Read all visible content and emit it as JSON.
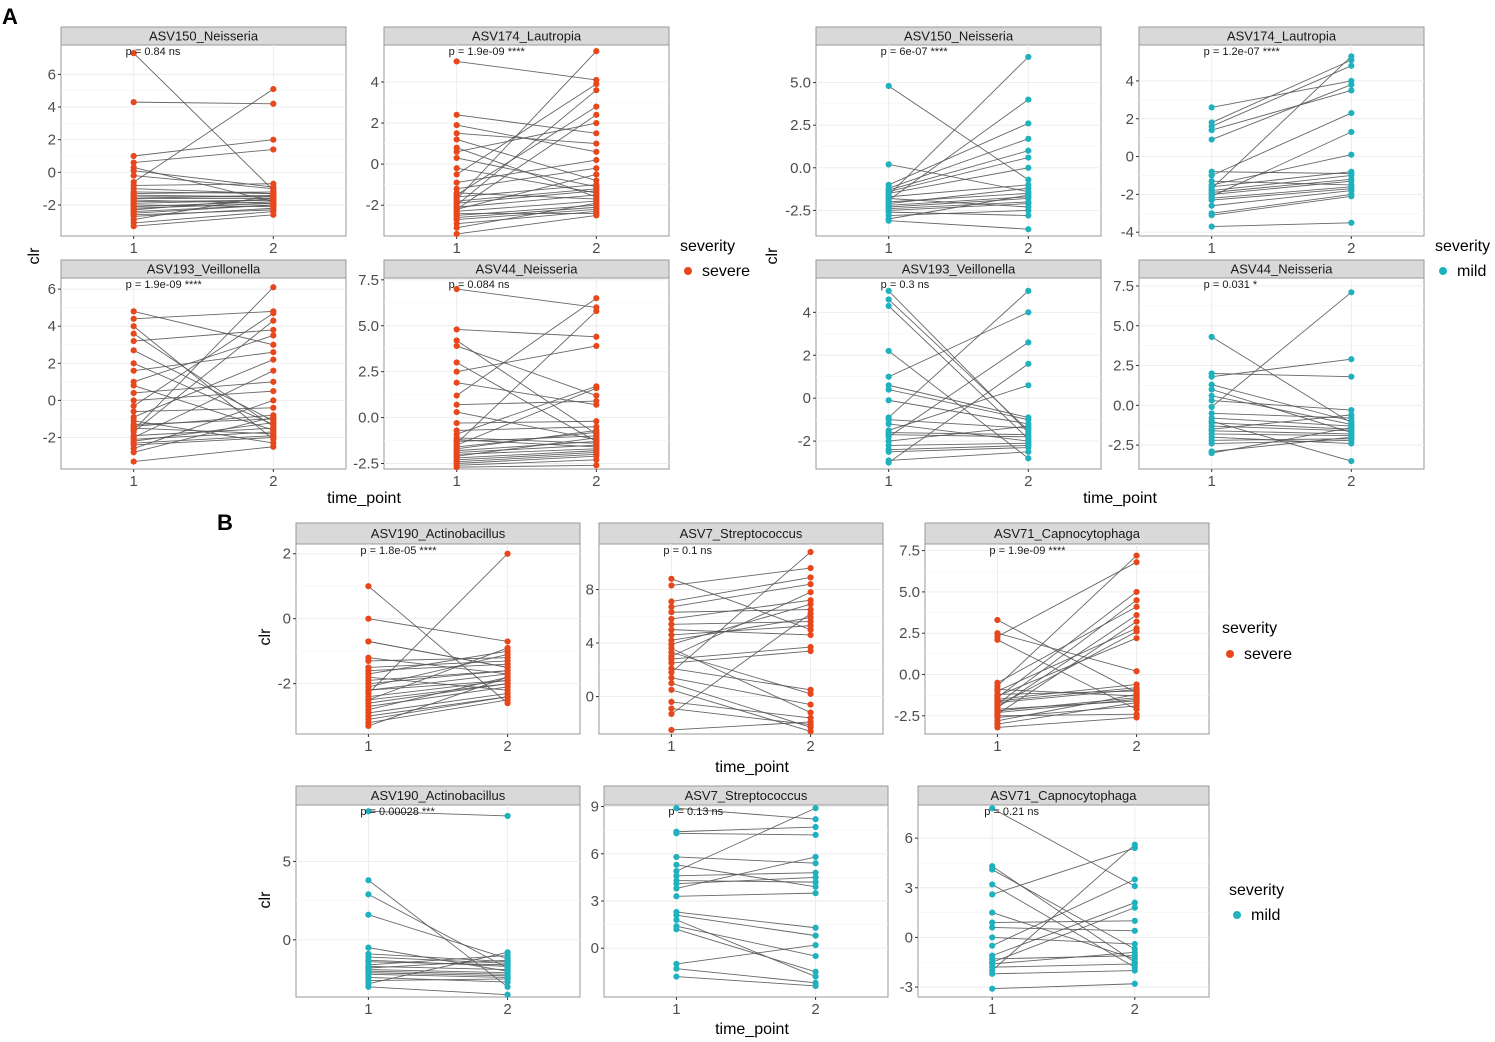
{
  "figure": {
    "panel_labels": [
      "A",
      "B"
    ],
    "axis_titles": {
      "x": "time_point",
      "y": "clr"
    },
    "legend_title": "severity",
    "colors": {
      "severe": "#E8471C",
      "mild": "#1FB2BE",
      "line": "#555555",
      "strip_bg": "#D9D9D9",
      "grid": "#EBEBEB",
      "border": "#999999"
    }
  },
  "chart_data": [
    {
      "id": "A-severe",
      "type": "paired-line-scatter",
      "severity": "severe",
      "panels": [
        {
          "title": "ASV150_Neisseria",
          "pval": "p = 0.84 ns",
          "ylim": [
            -3.9,
            7.8
          ],
          "yticks": [
            -2,
            0,
            2,
            4,
            6
          ],
          "xticks": [
            1,
            2
          ],
          "t1": [
            7.3,
            4.3,
            1.0,
            0.6,
            0.3,
            0.1,
            -0.2,
            -0.6,
            -0.8,
            -1.0,
            -1.2,
            -1.3,
            -1.4,
            -1.5,
            -1.6,
            -1.6,
            -1.7,
            -1.8,
            -1.9,
            -2.0,
            -2.1,
            -2.2,
            -2.3,
            -2.4,
            -2.5,
            -2.6,
            -2.7,
            -2.9,
            -3.1,
            -3.3
          ],
          "t2": [
            5.1,
            4.2,
            2.0,
            1.4,
            -0.7,
            -0.9,
            -1.0,
            -1.1,
            -1.2,
            -1.3,
            -1.3,
            -1.4,
            -1.4,
            -1.5,
            -1.5,
            -1.6,
            -1.6,
            -1.7,
            -1.7,
            -1.8,
            -1.8,
            -1.9,
            -1.9,
            -2.0,
            -2.0,
            -2.1,
            -2.2,
            -2.3,
            -2.4,
            -2.6
          ]
        },
        {
          "title": "ASV174_Lautropia",
          "pval": "p = 1.9e-09 ****",
          "ylim": [
            -3.5,
            5.8
          ],
          "yticks": [
            -2,
            0,
            2,
            4
          ],
          "xticks": [
            1,
            2
          ],
          "t1": [
            5.0,
            2.4,
            1.9,
            1.5,
            1.2,
            0.8,
            0.6,
            0.3,
            -0.2,
            -0.5,
            -0.9,
            -1.2,
            -1.4,
            -1.5,
            -1.6,
            -1.7,
            -1.8,
            -1.9,
            -2.0,
            -2.1,
            -2.2,
            -2.2,
            -2.3,
            -2.4,
            -2.5,
            -2.6,
            -2.7,
            -2.9,
            -3.1,
            -3.4
          ],
          "t2": [
            5.5,
            4.1,
            3.9,
            3.6,
            2.8,
            2.4,
            2.0,
            1.5,
            1.0,
            0.6,
            0.2,
            -0.2,
            -0.5,
            -0.8,
            -1.0,
            -1.1,
            -1.2,
            -1.3,
            -1.4,
            -1.5,
            -1.6,
            -1.7,
            -1.8,
            -1.9,
            -2.0,
            -2.1,
            -2.2,
            -2.3,
            -2.4,
            -2.5
          ]
        },
        {
          "title": "ASV193_Veillonella",
          "pval": "p = 1.9e-09 ****",
          "ylim": [
            -3.7,
            6.6
          ],
          "yticks": [
            -2,
            0,
            2,
            4,
            6
          ],
          "xticks": [
            1,
            2
          ],
          "t1": [
            4.8,
            4.4,
            4.0,
            3.6,
            3.2,
            2.7,
            2.0,
            1.6,
            1.0,
            0.8,
            0.4,
            0.0,
            -0.3,
            -0.6,
            -0.9,
            -1.1,
            -1.3,
            -1.4,
            -1.5,
            -1.6,
            -1.7,
            -1.9,
            -2.0,
            -2.1,
            -2.2,
            -2.3,
            -2.4,
            -2.6,
            -2.8,
            -3.3
          ],
          "t2": [
            6.1,
            4.8,
            4.7,
            4.3,
            3.8,
            3.5,
            3.0,
            2.6,
            2.2,
            1.6,
            1.0,
            0.5,
            0.0,
            -0.4,
            -0.8,
            -0.9,
            -1.0,
            -1.1,
            -1.2,
            -1.3,
            -1.4,
            -1.5,
            -1.6,
            -1.7,
            -1.8,
            -1.9,
            -2.0,
            -2.1,
            -2.3,
            -2.5
          ]
        },
        {
          "title": "ASV44_Neisseria",
          "pval": "p = 0.084 ns",
          "ylim": [
            -2.8,
            7.6
          ],
          "yticks": [
            -2.5,
            0.0,
            2.5,
            5.0,
            7.5
          ],
          "xticks": [
            1,
            2
          ],
          "t1": [
            7.0,
            4.8,
            4.2,
            3.9,
            3.0,
            2.5,
            1.9,
            1.2,
            0.7,
            0.3,
            -0.3,
            -0.7,
            -0.9,
            -1.1,
            -1.2,
            -1.3,
            -1.4,
            -1.5,
            -1.6,
            -1.7,
            -1.8,
            -1.9,
            -2.0,
            -2.1,
            -2.2,
            -2.3,
            -2.4,
            -2.5,
            -2.6,
            -2.7
          ],
          "t2": [
            6.5,
            6.0,
            5.8,
            4.4,
            3.9,
            1.7,
            1.6,
            1.2,
            0.9,
            0.7,
            -0.2,
            -0.5,
            -0.7,
            -0.8,
            -0.9,
            -1.0,
            -1.1,
            -1.2,
            -1.3,
            -1.3,
            -1.4,
            -1.5,
            -1.6,
            -1.7,
            -1.8,
            -1.9,
            -2.0,
            -2.1,
            -2.3,
            -2.6
          ]
        }
      ]
    },
    {
      "id": "A-mild",
      "type": "paired-line-scatter",
      "severity": "mild",
      "panels": [
        {
          "title": "ASV150_Neisseria",
          "pval": "p = 6e-07 ****",
          "ylim": [
            -4.0,
            7.2
          ],
          "yticks": [
            -2.5,
            0.0,
            2.5,
            5.0
          ],
          "xticks": [
            1,
            2
          ],
          "t1": [
            4.8,
            0.2,
            -1.0,
            -1.2,
            -1.3,
            -1.4,
            -1.5,
            -1.6,
            -1.7,
            -1.8,
            -1.9,
            -2.0,
            -2.1,
            -2.2,
            -2.3,
            -2.4,
            -2.5,
            -2.6,
            -2.8,
            -3.0,
            -3.1
          ],
          "t2": [
            6.5,
            4.0,
            2.6,
            1.7,
            1.0,
            0.6,
            0.0,
            -0.7,
            -1.0,
            -1.2,
            -1.4,
            -1.5,
            -1.6,
            -1.7,
            -1.8,
            -2.0,
            -2.1,
            -2.3,
            -2.5,
            -2.8,
            -3.6
          ]
        },
        {
          "title": "ASV174_Lautropia",
          "pval": "p = 1.2e-07 ****",
          "ylim": [
            -4.2,
            5.9
          ],
          "yticks": [
            -4,
            -2,
            0,
            2,
            4
          ],
          "xticks": [
            1,
            2
          ],
          "t1": [
            2.6,
            1.8,
            1.6,
            1.4,
            0.9,
            -0.8,
            -1.0,
            -1.3,
            -1.5,
            -1.6,
            -1.7,
            -1.8,
            -1.9,
            -2.0,
            -2.1,
            -2.2,
            -2.3,
            -2.6,
            -3.0,
            -3.1,
            -3.7
          ],
          "t2": [
            5.3,
            5.1,
            4.8,
            4.0,
            3.8,
            3.5,
            2.3,
            1.3,
            0.1,
            -0.8,
            -0.9,
            -1.0,
            -1.2,
            -1.3,
            -1.5,
            -1.6,
            -1.7,
            -1.8,
            -2.0,
            -2.1,
            -3.5
          ]
        },
        {
          "title": "ASV193_Veillonella",
          "pval": "p = 0.3 ns",
          "ylim": [
            -3.3,
            5.6
          ],
          "yticks": [
            -2,
            0,
            2,
            4
          ],
          "xticks": [
            1,
            2
          ],
          "t1": [
            5.0,
            4.6,
            4.3,
            2.2,
            1.0,
            0.6,
            0.4,
            -0.1,
            -0.9,
            -1.0,
            -1.2,
            -1.5,
            -1.6,
            -1.7,
            -1.8,
            -2.0,
            -2.2,
            -2.4,
            -2.5,
            -2.9,
            -3.0
          ],
          "t2": [
            5.0,
            4.0,
            2.6,
            1.6,
            0.6,
            -0.9,
            -1.0,
            -1.2,
            -1.3,
            -1.4,
            -1.5,
            -1.6,
            -1.7,
            -1.8,
            -1.9,
            -2.0,
            -2.1,
            -2.2,
            -2.3,
            -2.5,
            -2.8
          ]
        },
        {
          "title": "ASV44_Neisseria",
          "pval": "p = 0.031 *",
          "ylim": [
            -4.0,
            8.0
          ],
          "yticks": [
            -2.5,
            0.0,
            2.5,
            5.0,
            7.5
          ],
          "xticks": [
            1,
            2
          ],
          "t1": [
            4.3,
            2.0,
            1.8,
            1.3,
            1.0,
            0.6,
            0.3,
            -0.1,
            -0.5,
            -0.8,
            -1.0,
            -1.1,
            -1.3,
            -1.5,
            -1.6,
            -1.8,
            -2.0,
            -2.2,
            -2.4,
            -2.9,
            -3.0
          ],
          "t2": [
            7.1,
            2.9,
            1.8,
            -0.3,
            -0.6,
            -0.8,
            -1.0,
            -1.1,
            -1.2,
            -1.3,
            -1.4,
            -1.5,
            -1.6,
            -1.7,
            -1.8,
            -1.9,
            -2.0,
            -2.1,
            -2.2,
            -2.4,
            -3.5
          ]
        }
      ]
    },
    {
      "id": "B-severe",
      "type": "paired-line-scatter",
      "severity": "severe",
      "panels": [
        {
          "title": "ASV190_Actinobacillus",
          "pval": "p = 1.8e-05 ****",
          "ylim": [
            -3.55,
            2.3
          ],
          "yticks": [
            -2,
            0,
            2
          ],
          "xticks": [
            1,
            2
          ],
          "t1": [
            1.0,
            0.0,
            -0.7,
            -0.7,
            -1.2,
            -1.3,
            -1.5,
            -1.6,
            -1.7,
            -1.8,
            -1.9,
            -2.0,
            -2.1,
            -2.2,
            -2.2,
            -2.3,
            -2.4,
            -2.5,
            -2.5,
            -2.6,
            -2.7,
            -2.8,
            -2.9,
            -3.0,
            -3.1,
            -3.2,
            -3.3
          ],
          "t2": [
            2.0,
            -0.7,
            -0.9,
            -1.0,
            -1.1,
            -1.2,
            -1.3,
            -1.4,
            -1.5,
            -1.5,
            -1.6,
            -1.6,
            -1.7,
            -1.7,
            -1.8,
            -1.8,
            -1.9,
            -1.9,
            -2.0,
            -2.0,
            -2.1,
            -2.2,
            -2.3,
            -2.4,
            -2.4,
            -2.5,
            -2.6
          ]
        },
        {
          "title": "ASV7_Streptococcus",
          "pval": "p = 0.1 ns",
          "ylim": [
            -2.8,
            11.4
          ],
          "yticks": [
            0,
            4,
            8
          ],
          "xticks": [
            1,
            2
          ],
          "t1": [
            8.8,
            8.3,
            7.1,
            6.7,
            6.3,
            5.8,
            5.4,
            5.0,
            4.6,
            4.2,
            3.9,
            3.6,
            3.3,
            3.0,
            2.8,
            2.5,
            2.1,
            1.8,
            1.4,
            1.0,
            0.5,
            -0.4,
            -0.9,
            -1.3,
            -2.5
          ],
          "t2": [
            10.8,
            9.6,
            8.9,
            8.4,
            7.8,
            7.2,
            6.9,
            6.5,
            6.2,
            5.9,
            5.6,
            5.3,
            5.0,
            4.6,
            3.7,
            3.4,
            0.5,
            0.2,
            -0.6,
            -1.2,
            -1.6,
            -1.9,
            -2.1,
            -2.3,
            -2.6
          ]
        },
        {
          "title": "ASV71_Capnocytophaga",
          "pval": "p = 1.9e-09 ****",
          "ylim": [
            -3.6,
            7.9
          ],
          "yticks": [
            -2.5,
            0.0,
            2.5,
            5.0,
            7.5
          ],
          "xticks": [
            1,
            2
          ],
          "t1": [
            3.3,
            2.5,
            2.3,
            2.1,
            -0.5,
            -0.7,
            -0.9,
            -1.0,
            -1.2,
            -1.3,
            -1.4,
            -1.5,
            -1.6,
            -1.7,
            -1.8,
            -1.9,
            -2.0,
            -2.1,
            -2.2,
            -2.3,
            -2.4,
            -2.5,
            -2.6,
            -2.8,
            -3.0,
            -3.2
          ],
          "t2": [
            7.2,
            6.8,
            5.0,
            4.5,
            4.1,
            3.6,
            3.2,
            2.8,
            2.6,
            2.2,
            0.2,
            -0.6,
            -0.8,
            -0.9,
            -1.0,
            -1.1,
            -1.2,
            -1.3,
            -1.4,
            -1.5,
            -1.6,
            -1.7,
            -1.9,
            -2.1,
            -2.4,
            -2.6
          ]
        }
      ]
    },
    {
      "id": "B-mild",
      "type": "paired-line-scatter",
      "severity": "mild",
      "panels": [
        {
          "title": "ASV190_Actinobacillus",
          "pval": "p = 0.00028 ***",
          "ylim": [
            -3.65,
            8.6
          ],
          "yticks": [
            0,
            5
          ],
          "xticks": [
            1,
            2
          ],
          "t1": [
            8.2,
            3.8,
            2.9,
            1.6,
            -0.5,
            -0.9,
            -1.1,
            -1.3,
            -1.4,
            -1.6,
            -1.7,
            -1.8,
            -1.9,
            -2.0,
            -2.1,
            -2.2,
            -2.4,
            -2.6,
            -2.8,
            -3.0
          ],
          "t2": [
            7.9,
            -0.8,
            -1.0,
            -1.2,
            -1.3,
            -1.4,
            -1.5,
            -1.6,
            -1.7,
            -1.8,
            -1.9,
            -2.0,
            -2.1,
            -2.2,
            -2.3,
            -2.4,
            -2.5,
            -2.7,
            -3.0,
            -3.5
          ]
        },
        {
          "title": "ASV7_Streptococcus",
          "pval": "p = 0.13 ns",
          "ylim": [
            -3.1,
            9.1
          ],
          "yticks": [
            0,
            3,
            6,
            9
          ],
          "xticks": [
            1,
            2
          ],
          "t1": [
            8.9,
            7.4,
            7.3,
            5.8,
            5.3,
            4.9,
            4.6,
            4.3,
            4.1,
            3.8,
            3.3,
            2.3,
            2.1,
            1.8,
            1.4,
            1.2,
            -1.0,
            -1.3,
            -1.8
          ],
          "t2": [
            8.9,
            8.2,
            7.7,
            7.2,
            5.8,
            5.4,
            4.8,
            4.5,
            4.2,
            3.9,
            3.5,
            1.3,
            0.8,
            0.2,
            -0.5,
            -1.5,
            -1.8,
            -2.2,
            -2.4
          ]
        },
        {
          "title": "ASV71_Capnocytophaga",
          "pval": "p = 0.21 ns",
          "ylim": [
            -3.6,
            8.0
          ],
          "yticks": [
            -3,
            0,
            3,
            6
          ],
          "xticks": [
            1,
            2
          ],
          "t1": [
            7.8,
            4.3,
            4.1,
            3.2,
            2.6,
            1.5,
            0.9,
            0.6,
            0.0,
            -0.5,
            -1.1,
            -1.3,
            -1.5,
            -1.6,
            -1.8,
            -2.0,
            -2.2,
            -3.1
          ],
          "t2": [
            5.6,
            5.4,
            3.5,
            3.1,
            2.1,
            1.8,
            1.0,
            0.4,
            -0.4,
            -0.7,
            -0.9,
            -1.1,
            -1.3,
            -1.5,
            -1.6,
            -1.8,
            -2.0,
            -2.8
          ]
        }
      ]
    }
  ]
}
